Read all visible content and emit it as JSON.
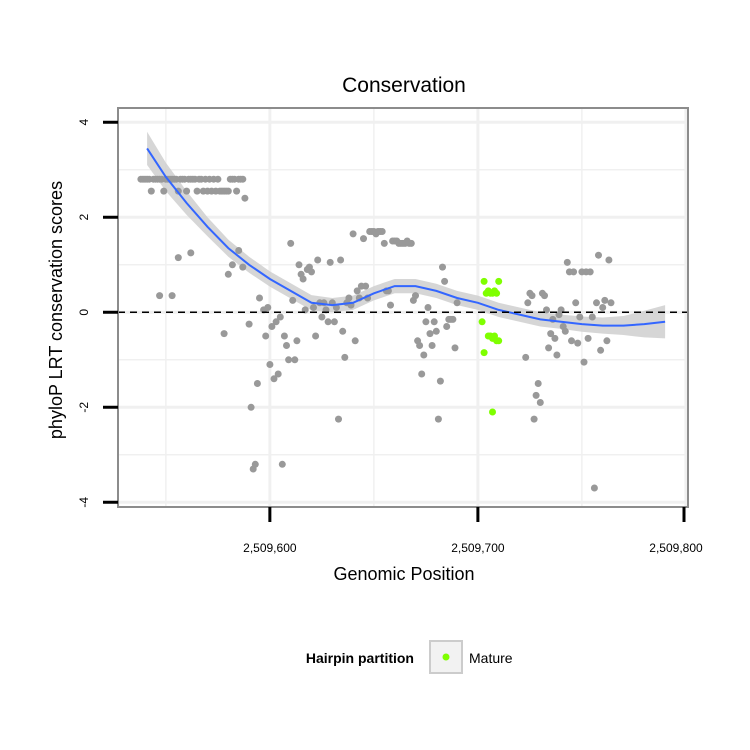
{
  "chart_data": {
    "type": "scatter",
    "title": "Conservation",
    "xlabel": "Genomic Position",
    "ylabel": "phyloP LRT conservation scores",
    "xlim": [
      2509527,
      2509801
    ],
    "ylim": [
      -4.1,
      4.3
    ],
    "x_ticks": [
      2509600,
      2509700,
      2509800
    ],
    "x_tick_labels": [
      "2,509,600",
      "2,509,700",
      "2,509,800"
    ],
    "y_ticks": [
      -4,
      -2,
      0,
      2,
      4
    ],
    "y_tick_labels": [
      "-4",
      "-2",
      "0",
      "2",
      "4"
    ],
    "grid": true,
    "reference_line": {
      "y": 0,
      "style": "dashed"
    },
    "legend": {
      "title": "Hairpin partition",
      "placement": "bottom",
      "entries": [
        {
          "label": "Mature",
          "color": "#7fff00"
        }
      ]
    },
    "colors": {
      "background_points": "#999999",
      "mature": "#7fff00",
      "smooth_line": "#3366ff",
      "ribbon": "#cfcfcf",
      "grid": "#f0f0f0",
      "panel_border": "#8c8c8c"
    },
    "series": [
      {
        "type": "scatter",
        "color": "#999999",
        "points": [
          [
            2509538,
            2.8
          ],
          [
            2509539,
            2.8
          ],
          [
            2509540,
            2.8
          ],
          [
            2509541,
            2.8
          ],
          [
            2509542,
            2.8
          ],
          [
            2509543,
            2.55
          ],
          [
            2509544,
            2.8
          ],
          [
            2509545,
            2.8
          ],
          [
            2509546,
            2.8
          ],
          [
            2509547,
            2.8
          ],
          [
            2509548,
            2.8
          ],
          [
            2509549,
            2.55
          ],
          [
            2509550,
            2.8
          ],
          [
            2509551,
            2.8
          ],
          [
            2509552,
            2.8
          ],
          [
            2509553,
            2.8
          ],
          [
            2509554,
            2.8
          ],
          [
            2509555,
            2.8
          ],
          [
            2509556,
            2.55
          ],
          [
            2509557,
            2.8
          ],
          [
            2509558,
            2.8
          ],
          [
            2509559,
            2.8
          ],
          [
            2509560,
            2.55
          ],
          [
            2509561,
            2.8
          ],
          [
            2509562,
            2.8
          ],
          [
            2509563,
            2.8
          ],
          [
            2509564,
            2.8
          ],
          [
            2509565,
            2.55
          ],
          [
            2509566,
            2.8
          ],
          [
            2509567,
            2.8
          ],
          [
            2509568,
            2.55
          ],
          [
            2509569,
            2.8
          ],
          [
            2509570,
            2.55
          ],
          [
            2509571,
            2.8
          ],
          [
            2509572,
            2.55
          ],
          [
            2509573,
            2.8
          ],
          [
            2509574,
            2.55
          ],
          [
            2509575,
            2.8
          ],
          [
            2509576,
            2.55
          ],
          [
            2509577,
            2.55
          ],
          [
            2509578,
            2.55
          ],
          [
            2509579,
            2.55
          ],
          [
            2509580,
            2.55
          ],
          [
            2509581,
            2.8
          ],
          [
            2509582,
            2.8
          ],
          [
            2509583,
            2.8
          ],
          [
            2509584,
            2.55
          ],
          [
            2509585,
            2.8
          ],
          [
            2509586,
            2.8
          ],
          [
            2509587,
            2.8
          ],
          [
            2509588,
            2.4
          ],
          [
            2509547,
            0.35
          ],
          [
            2509553,
            0.35
          ],
          [
            2509556,
            1.15
          ],
          [
            2509562,
            1.25
          ],
          [
            2509578,
            -0.45
          ],
          [
            2509580,
            0.8
          ],
          [
            2509582,
            1.0
          ],
          [
            2509585,
            1.3
          ],
          [
            2509587,
            0.95
          ],
          [
            2509590,
            -0.25
          ],
          [
            2509591,
            -2.0
          ],
          [
            2509592,
            -3.3
          ],
          [
            2509593,
            -3.2
          ],
          [
            2509594,
            -1.5
          ],
          [
            2509595,
            0.3
          ],
          [
            2509597,
            0.05
          ],
          [
            2509598,
            -0.5
          ],
          [
            2509599,
            0.1
          ],
          [
            2509600,
            -1.1
          ],
          [
            2509601,
            -0.3
          ],
          [
            2509602,
            -1.4
          ],
          [
            2509603,
            -0.2
          ],
          [
            2509604,
            -1.3
          ],
          [
            2509605,
            -0.1
          ],
          [
            2509606,
            -3.2
          ],
          [
            2509607,
            -0.5
          ],
          [
            2509608,
            -0.7
          ],
          [
            2509609,
            -1.0
          ],
          [
            2509610,
            1.45
          ],
          [
            2509611,
            0.25
          ],
          [
            2509612,
            -1.0
          ],
          [
            2509613,
            -0.6
          ],
          [
            2509614,
            1.0
          ],
          [
            2509615,
            0.8
          ],
          [
            2509616,
            0.7
          ],
          [
            2509617,
            0.05
          ],
          [
            2509618,
            0.9
          ],
          [
            2509619,
            0.95
          ],
          [
            2509620,
            0.85
          ],
          [
            2509621,
            0.1
          ],
          [
            2509622,
            -0.5
          ],
          [
            2509623,
            1.1
          ],
          [
            2509624,
            0.2
          ],
          [
            2509625,
            -0.1
          ],
          [
            2509626,
            0.2
          ],
          [
            2509627,
            0.05
          ],
          [
            2509628,
            -0.2
          ],
          [
            2509629,
            1.05
          ],
          [
            2509630,
            0.2
          ],
          [
            2509631,
            -0.2
          ],
          [
            2509632,
            0.1
          ],
          [
            2509633,
            -2.25
          ],
          [
            2509634,
            1.1
          ],
          [
            2509635,
            -0.4
          ],
          [
            2509636,
            -0.95
          ],
          [
            2509637,
            0.2
          ],
          [
            2509638,
            0.3
          ],
          [
            2509639,
            0.15
          ],
          [
            2509640,
            1.65
          ],
          [
            2509641,
            -0.6
          ],
          [
            2509642,
            0.45
          ],
          [
            2509643,
            0.3
          ],
          [
            2509644,
            0.55
          ],
          [
            2509645,
            1.55
          ],
          [
            2509646,
            0.55
          ],
          [
            2509647,
            0.3
          ],
          [
            2509648,
            1.7
          ],
          [
            2509649,
            1.7
          ],
          [
            2509650,
            1.7
          ],
          [
            2509651,
            1.65
          ],
          [
            2509652,
            1.7
          ],
          [
            2509653,
            1.7
          ],
          [
            2509654,
            1.7
          ],
          [
            2509655,
            1.45
          ],
          [
            2509656,
            0.45
          ],
          [
            2509657,
            0.45
          ],
          [
            2509658,
            0.15
          ],
          [
            2509659,
            1.5
          ],
          [
            2509660,
            1.5
          ],
          [
            2509661,
            1.5
          ],
          [
            2509662,
            1.45
          ],
          [
            2509663,
            1.45
          ],
          [
            2509664,
            1.45
          ],
          [
            2509665,
            1.45
          ],
          [
            2509666,
            1.5
          ],
          [
            2509667,
            1.45
          ],
          [
            2509668,
            1.45
          ],
          [
            2509669,
            0.25
          ],
          [
            2509670,
            0.35
          ],
          [
            2509671,
            -0.6
          ],
          [
            2509672,
            -0.7
          ],
          [
            2509673,
            -1.3
          ],
          [
            2509674,
            -0.9
          ],
          [
            2509675,
            -0.2
          ],
          [
            2509676,
            0.1
          ],
          [
            2509677,
            -0.45
          ],
          [
            2509678,
            -0.7
          ],
          [
            2509679,
            -0.2
          ],
          [
            2509680,
            -0.4
          ],
          [
            2509681,
            -2.25
          ],
          [
            2509682,
            -1.45
          ],
          [
            2509683,
            0.95
          ],
          [
            2509684,
            0.65
          ],
          [
            2509685,
            -0.3
          ],
          [
            2509686,
            -0.15
          ],
          [
            2509687,
            -0.15
          ],
          [
            2509688,
            -0.15
          ],
          [
            2509689,
            -0.75
          ],
          [
            2509690,
            0.2
          ],
          [
            2509723,
            -0.95
          ],
          [
            2509724,
            0.2
          ],
          [
            2509725,
            0.4
          ],
          [
            2509726,
            0.35
          ],
          [
            2509727,
            -2.25
          ],
          [
            2509728,
            -1.75
          ],
          [
            2509729,
            -1.5
          ],
          [
            2509730,
            -1.9
          ],
          [
            2509731,
            0.4
          ],
          [
            2509732,
            0.35
          ],
          [
            2509733,
            0.05
          ],
          [
            2509734,
            -0.75
          ],
          [
            2509735,
            -0.45
          ],
          [
            2509736,
            -0.15
          ],
          [
            2509737,
            -0.55
          ],
          [
            2509738,
            -0.9
          ],
          [
            2509739,
            -0.05
          ],
          [
            2509740,
            0.05
          ],
          [
            2509741,
            -0.3
          ],
          [
            2509742,
            -0.4
          ],
          [
            2509743,
            1.05
          ],
          [
            2509744,
            0.85
          ],
          [
            2509745,
            -0.6
          ],
          [
            2509746,
            0.85
          ],
          [
            2509747,
            0.2
          ],
          [
            2509748,
            -0.65
          ],
          [
            2509749,
            -0.1
          ],
          [
            2509750,
            0.85
          ],
          [
            2509751,
            -1.05
          ],
          [
            2509752,
            0.85
          ],
          [
            2509753,
            -0.55
          ],
          [
            2509754,
            0.85
          ],
          [
            2509755,
            -0.1
          ],
          [
            2509756,
            -3.7
          ],
          [
            2509757,
            0.2
          ],
          [
            2509758,
            1.2
          ],
          [
            2509759,
            -0.8
          ],
          [
            2509760,
            0.1
          ],
          [
            2509761,
            0.25
          ],
          [
            2509762,
            -0.6
          ],
          [
            2509763,
            1.1
          ],
          [
            2509764,
            0.2
          ]
        ]
      },
      {
        "name": "Mature",
        "type": "scatter",
        "color": "#7fff00",
        "points": [
          [
            2509703,
            0.65
          ],
          [
            2509704,
            0.4
          ],
          [
            2509705,
            0.45
          ],
          [
            2509706,
            0.4
          ],
          [
            2509707,
            0.4
          ],
          [
            2509708,
            0.45
          ],
          [
            2509709,
            0.4
          ],
          [
            2509710,
            0.65
          ],
          [
            2509702,
            -0.2
          ],
          [
            2509703,
            -0.85
          ],
          [
            2509705,
            -0.5
          ],
          [
            2509706,
            -0.5
          ],
          [
            2509707,
            -0.55
          ],
          [
            2509708,
            -0.5
          ],
          [
            2509709,
            -0.6
          ],
          [
            2509710,
            -0.6
          ],
          [
            2509707,
            -2.1
          ]
        ]
      },
      {
        "type": "smooth",
        "color": "#3366ff",
        "x": [
          2509541,
          2509550,
          2509560,
          2509570,
          2509580,
          2509590,
          2509600,
          2509610,
          2509620,
          2509630,
          2509640,
          2509650,
          2509660,
          2509670,
          2509680,
          2509690,
          2509700,
          2509710,
          2509720,
          2509730,
          2509740,
          2509750,
          2509760,
          2509770,
          2509780,
          2509790
        ],
        "y": [
          3.45,
          2.85,
          2.3,
          1.8,
          1.35,
          1.0,
          0.7,
          0.45,
          0.2,
          0.15,
          0.2,
          0.4,
          0.55,
          0.55,
          0.45,
          0.3,
          0.2,
          0.05,
          -0.05,
          -0.15,
          -0.2,
          -0.25,
          -0.28,
          -0.28,
          -0.25,
          -0.2
        ],
        "ribbon_half_width": [
          0.35,
          0.3,
          0.25,
          0.2,
          0.18,
          0.17,
          0.16,
          0.16,
          0.16,
          0.15,
          0.15,
          0.15,
          0.15,
          0.15,
          0.15,
          0.15,
          0.15,
          0.15,
          0.15,
          0.15,
          0.15,
          0.16,
          0.17,
          0.2,
          0.28,
          0.35
        ]
      }
    ]
  }
}
